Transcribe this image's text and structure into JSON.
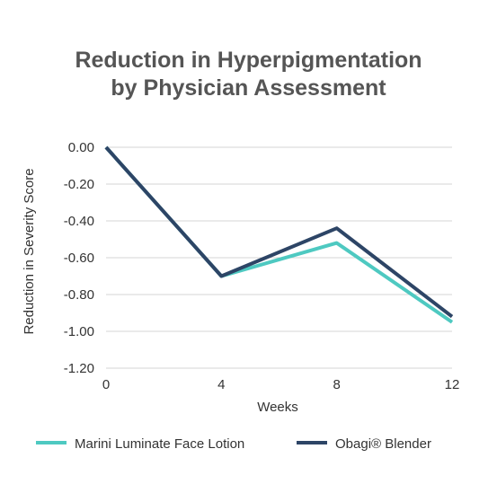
{
  "chart_data": {
    "type": "line",
    "title_lines": [
      "Reduction in Hyperpigmentation",
      "by Physician Assessment"
    ],
    "xlabel": "Weeks",
    "ylabel": "Reduction in Severity Score",
    "x_ticks": [
      "0",
      "4",
      "8",
      "12"
    ],
    "y_ticks": [
      "0.00",
      "-0.20",
      "-0.40",
      "-0.60",
      "-0.80",
      "-1.00",
      "-1.20"
    ],
    "xlim": [
      0,
      12
    ],
    "ylim": [
      -1.2,
      0
    ],
    "grid": true,
    "legend_position": "bottom",
    "series": [
      {
        "name": "Marini Luminate Face Lotion",
        "color": "#4ec9c1",
        "x": [
          0,
          4,
          8,
          12
        ],
        "y": [
          0.0,
          -0.7,
          -0.52,
          -0.95
        ]
      },
      {
        "name": "Obagi® Blender",
        "color": "#2d4566",
        "x": [
          0,
          4,
          8,
          12
        ],
        "y": [
          0.0,
          -0.7,
          -0.44,
          -0.92
        ]
      }
    ]
  }
}
